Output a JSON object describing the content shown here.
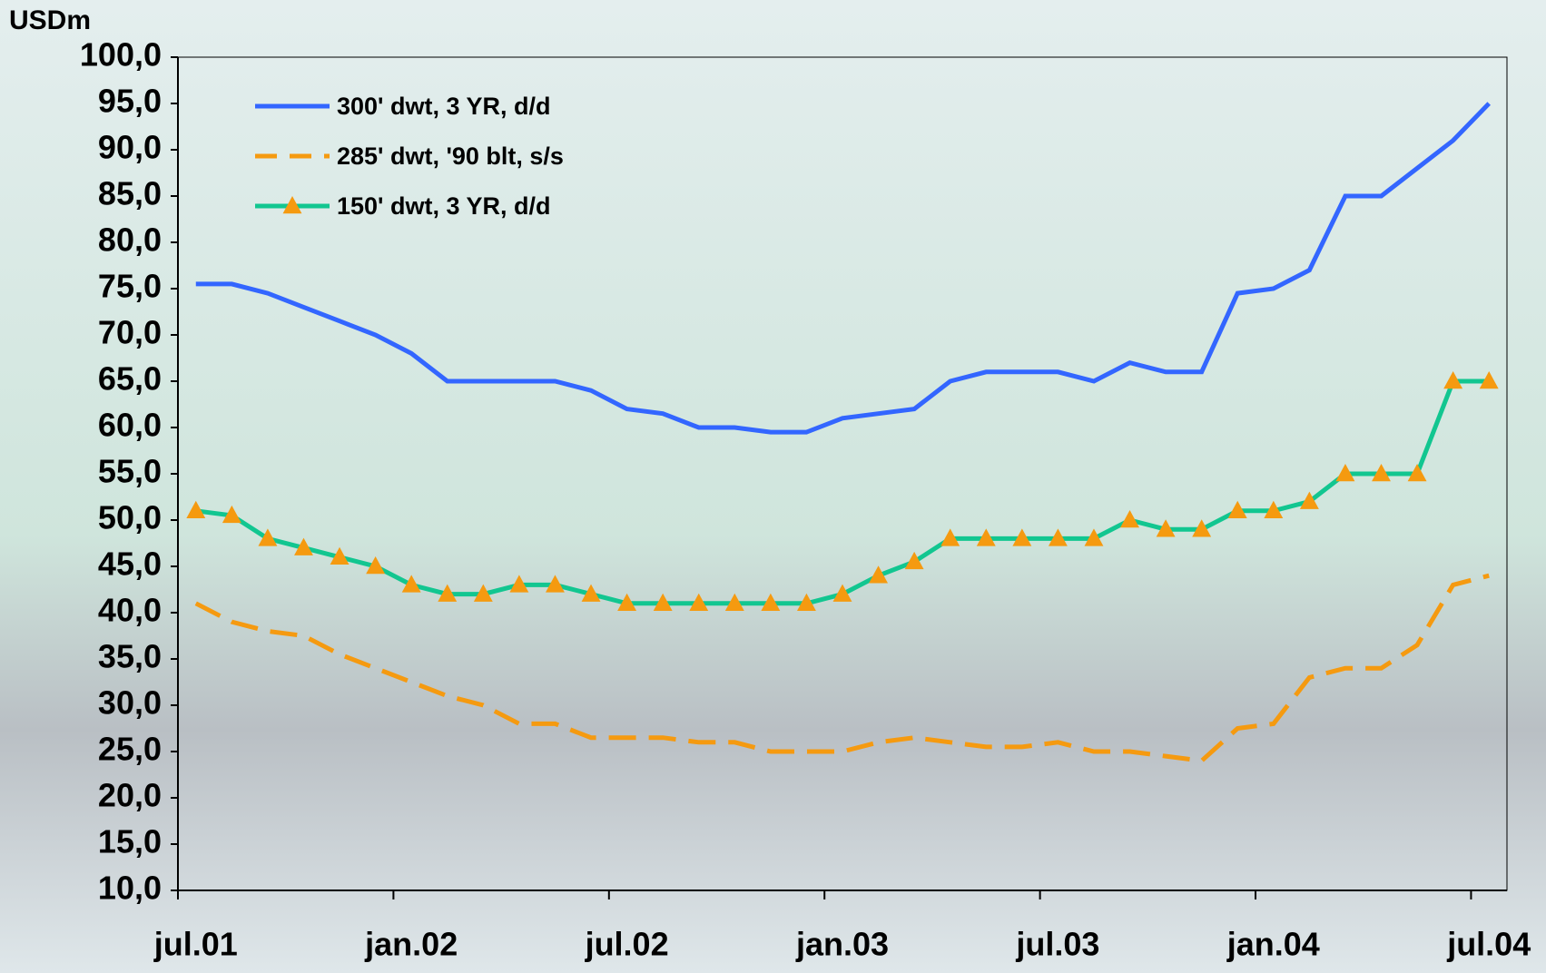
{
  "chart_data": {
    "type": "line",
    "y_label": "USDm",
    "categories": [
      "jul.01",
      null,
      null,
      null,
      null,
      null,
      "jan.02",
      null,
      null,
      null,
      null,
      null,
      "jul.02",
      null,
      null,
      null,
      null,
      null,
      "jan.03",
      null,
      null,
      null,
      null,
      null,
      "jul.03",
      null,
      null,
      null,
      null,
      null,
      "jan.04",
      null,
      null,
      null,
      null,
      null,
      "jul.04"
    ],
    "series": [
      {
        "name": "300' dwt, 3 YR, d/d",
        "color": "#3366ff",
        "dash": false,
        "marker": null,
        "values": [
          75.5,
          75.5,
          74.5,
          73,
          71.5,
          70,
          68,
          65,
          65,
          65,
          65,
          64,
          62,
          61.5,
          60,
          60,
          59.5,
          59.5,
          61,
          61.5,
          62,
          65,
          66,
          66,
          66,
          65,
          67,
          66,
          66,
          74.5,
          75,
          77,
          85,
          85,
          88,
          91,
          95
        ]
      },
      {
        "name": "285' dwt, '90 blt, s/s",
        "color": "#f59a10",
        "dash": true,
        "marker": null,
        "values": [
          41,
          39,
          38,
          37.5,
          35.5,
          34,
          32.5,
          31,
          30,
          28,
          28,
          26.5,
          26.5,
          26.5,
          26,
          26,
          25,
          25,
          25,
          26,
          26.5,
          26,
          25.5,
          25.5,
          26,
          25,
          25,
          24.5,
          24,
          27.5,
          28,
          33,
          34,
          34,
          36.5,
          43,
          44
        ]
      },
      {
        "name": "150' dwt, 3 YR, d/d",
        "color": "#12c690",
        "dash": false,
        "marker": "triangle",
        "marker_color": "#f59a10",
        "values": [
          51,
          50.5,
          48,
          47,
          46,
          45,
          43,
          42,
          42,
          43,
          43,
          42,
          41,
          41,
          41,
          41,
          41,
          41,
          42,
          44,
          45.5,
          48,
          48,
          48,
          48,
          48,
          50,
          49,
          49,
          51,
          51,
          52,
          55,
          55,
          55,
          65,
          65
        ]
      }
    ],
    "ylim": [
      10,
      100
    ],
    "yticks": [
      {
        "value": 10,
        "label": "10,0"
      },
      {
        "value": 15,
        "label": "15,0"
      },
      {
        "value": 20,
        "label": "20,0"
      },
      {
        "value": 25,
        "label": "25,0"
      },
      {
        "value": 30,
        "label": "30,0"
      },
      {
        "value": 35,
        "label": "35,0"
      },
      {
        "value": 40,
        "label": "40,0"
      },
      {
        "value": 45,
        "label": "45,0"
      },
      {
        "value": 50,
        "label": "50,0"
      },
      {
        "value": 55,
        "label": "55,0"
      },
      {
        "value": 60,
        "label": "60,0"
      },
      {
        "value": 65,
        "label": "65,0"
      },
      {
        "value": 70,
        "label": "70,0"
      },
      {
        "value": 75,
        "label": "75,0"
      },
      {
        "value": 80,
        "label": "80,0"
      },
      {
        "value": 85,
        "label": "85,0"
      },
      {
        "value": 90,
        "label": "90,0"
      },
      {
        "value": 95,
        "label": "95,0"
      },
      {
        "value": 100,
        "label": "100,0"
      }
    ],
    "grid": false,
    "legend": "upper-left"
  }
}
